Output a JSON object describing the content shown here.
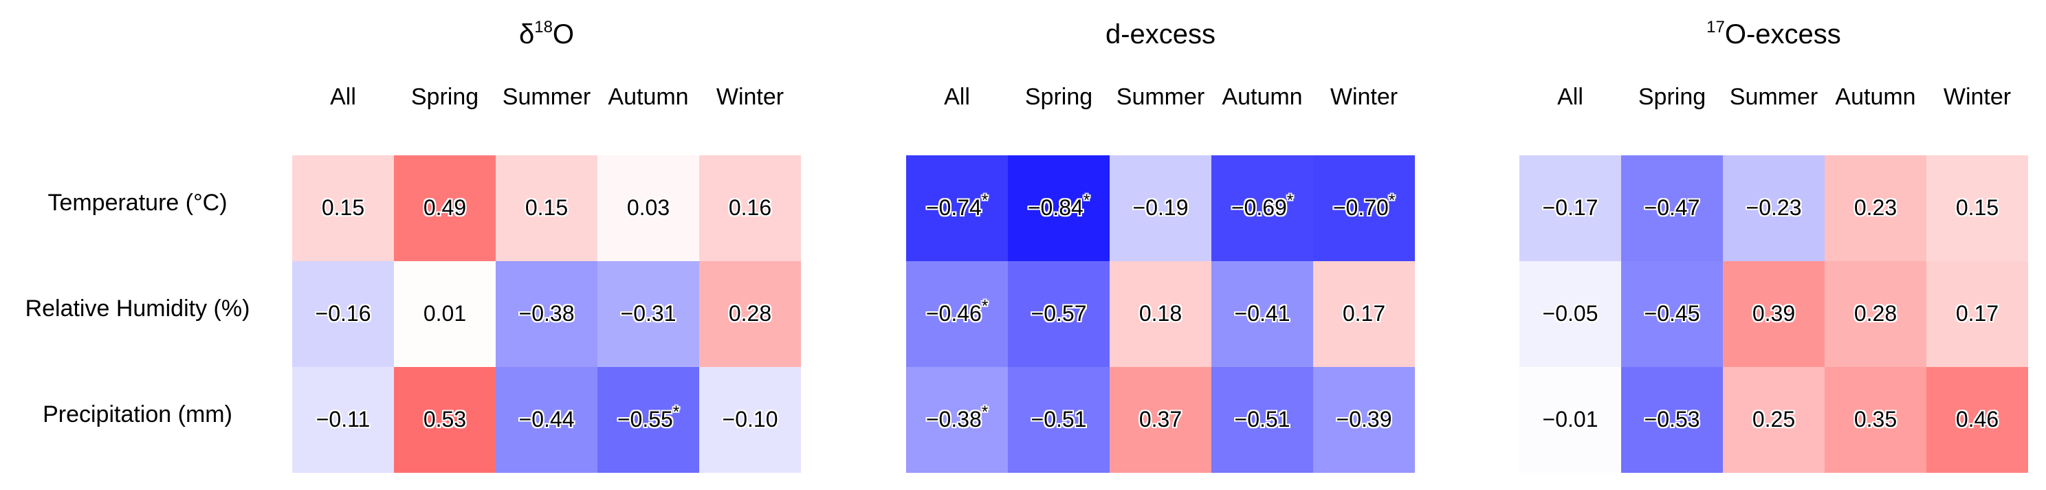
{
  "chart_data": {
    "type": "heatmap",
    "row_labels": [
      "Temperature (°C)",
      "Relative Humidity (%)",
      "Precipitation (mm)"
    ],
    "columns": [
      "All",
      "Spring",
      "Summer",
      "Autumn",
      "Winter"
    ],
    "color_scale": {
      "negative": "#1f1fff",
      "zero": "#ffffff",
      "positive": "#ff6e6e",
      "range": [
        -0.84,
        0.53
      ]
    },
    "panels": [
      {
        "title_main": "δ",
        "title_sup": "18",
        "title_rest": "O",
        "values": [
          [
            "0.15",
            "0.49",
            "0.15",
            "0.03",
            "0.16"
          ],
          [
            "−0.16",
            "0.01",
            "−0.38",
            "−0.31",
            "0.28"
          ],
          [
            "−0.11",
            "0.53",
            "−0.44",
            "−0.55",
            "−0.10"
          ]
        ],
        "significant": [
          [
            false,
            false,
            false,
            false,
            false
          ],
          [
            false,
            false,
            false,
            false,
            false
          ],
          [
            false,
            false,
            false,
            true,
            false
          ]
        ]
      },
      {
        "title_main": "d-excess",
        "title_sup": "",
        "title_rest": "",
        "values": [
          [
            "−0.74",
            "−0.84",
            "−0.19",
            "−0.69",
            "−0.70"
          ],
          [
            "−0.46",
            "−0.57",
            "0.18",
            "−0.41",
            "0.17"
          ],
          [
            "−0.38",
            "−0.51",
            "0.37",
            "−0.51",
            "−0.39"
          ]
        ],
        "significant": [
          [
            true,
            true,
            false,
            true,
            true
          ],
          [
            true,
            false,
            false,
            false,
            false
          ],
          [
            true,
            false,
            false,
            false,
            false
          ]
        ]
      },
      {
        "title_main": "",
        "title_sup": "17",
        "title_rest": "O-excess",
        "values": [
          [
            "−0.17",
            "−0.47",
            "−0.23",
            "0.23",
            "0.15"
          ],
          [
            "−0.05",
            "−0.45",
            "0.39",
            "0.28",
            "0.17"
          ],
          [
            "−0.01",
            "−0.53",
            "0.25",
            "0.35",
            "0.46"
          ]
        ],
        "significant": [
          [
            false,
            false,
            false,
            false,
            false
          ],
          [
            false,
            false,
            false,
            false,
            false
          ],
          [
            false,
            false,
            false,
            false,
            false
          ]
        ]
      }
    ],
    "significance_marker": "*"
  }
}
